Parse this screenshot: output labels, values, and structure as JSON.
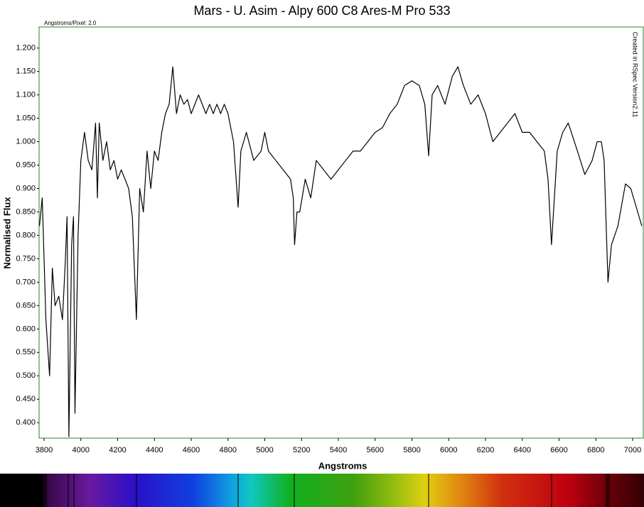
{
  "chart_data": {
    "type": "line",
    "title": "Mars - U. Asim - Alpy 600 C8 Ares-M Pro 533",
    "subtitle": "Angstroms/Pixel: 2.0",
    "annotation": "Created in RSpec Version2.11",
    "x_label": "Angstroms",
    "y_label": "Normalised Flux",
    "color": "#000000",
    "x": [
      3775,
      3790,
      3810,
      3830,
      3845,
      3860,
      3880,
      3900,
      3915,
      3925,
      3935,
      3950,
      3960,
      3968,
      3985,
      4000,
      4020,
      4040,
      4060,
      4080,
      4090,
      4100,
      4120,
      4140,
      4160,
      4180,
      4200,
      4220,
      4240,
      4260,
      4280,
      4302,
      4320,
      4340,
      4360,
      4380,
      4400,
      4420,
      4440,
      4460,
      4480,
      4500,
      4520,
      4540,
      4560,
      4580,
      4600,
      4640,
      4680,
      4700,
      4720,
      4740,
      4760,
      4780,
      4800,
      4830,
      4855,
      4870,
      4900,
      4940,
      4980,
      5000,
      5020,
      5060,
      5100,
      5140,
      5155,
      5162,
      5175,
      5190,
      5220,
      5250,
      5280,
      5320,
      5360,
      5400,
      5440,
      5480,
      5520,
      5560,
      5600,
      5640,
      5680,
      5720,
      5760,
      5800,
      5840,
      5870,
      5891,
      5910,
      5940,
      5980,
      6020,
      6050,
      6080,
      6120,
      6160,
      6200,
      6240,
      6280,
      6320,
      6360,
      6400,
      6440,
      6480,
      6520,
      6540,
      6559,
      6590,
      6620,
      6650,
      6700,
      6740,
      6780,
      6807,
      6830,
      6845,
      6866,
      6885,
      6920,
      6961,
      6990,
      7020,
      7050
    ],
    "values": [
      0.82,
      0.88,
      0.62,
      0.5,
      0.73,
      0.65,
      0.67,
      0.62,
      0.74,
      0.84,
      0.37,
      0.78,
      0.84,
      0.42,
      0.8,
      0.96,
      1.02,
      0.96,
      0.94,
      1.04,
      0.88,
      1.04,
      0.96,
      1.0,
      0.94,
      0.96,
      0.92,
      0.94,
      0.92,
      0.9,
      0.84,
      0.62,
      0.9,
      0.85,
      0.98,
      0.9,
      0.98,
      0.96,
      1.02,
      1.06,
      1.08,
      1.16,
      1.06,
      1.1,
      1.08,
      1.09,
      1.06,
      1.1,
      1.06,
      1.08,
      1.06,
      1.08,
      1.06,
      1.08,
      1.06,
      1.0,
      0.86,
      0.98,
      1.02,
      0.96,
      0.98,
      1.02,
      0.98,
      0.96,
      0.94,
      0.92,
      0.88,
      0.78,
      0.85,
      0.85,
      0.92,
      0.88,
      0.96,
      0.94,
      0.92,
      0.94,
      0.96,
      0.98,
      0.98,
      1.0,
      1.02,
      1.03,
      1.06,
      1.08,
      1.12,
      1.13,
      1.12,
      1.08,
      0.97,
      1.1,
      1.12,
      1.08,
      1.14,
      1.16,
      1.12,
      1.08,
      1.1,
      1.06,
      1.0,
      1.02,
      1.04,
      1.06,
      1.02,
      1.02,
      1.0,
      0.98,
      0.92,
      0.78,
      0.98,
      1.02,
      1.04,
      0.98,
      0.93,
      0.96,
      1.0,
      1.0,
      0.96,
      0.7,
      0.78,
      0.82,
      0.91,
      0.9,
      0.86,
      0.82
    ],
    "xlim": [
      3773,
      7058
    ],
    "ylim": [
      0.367,
      1.245
    ],
    "xticks": [
      3800,
      4000,
      4200,
      4400,
      4600,
      4800,
      5000,
      5200,
      5400,
      5600,
      5800,
      6000,
      6200,
      6400,
      6600,
      6800,
      7000
    ],
    "yticks": [
      {
        "value": 0.4,
        "label": "0.400"
      },
      {
        "value": 0.45,
        "label": "0.450"
      },
      {
        "value": 0.5,
        "label": "0.500"
      },
      {
        "value": 0.55,
        "label": "0.550"
      },
      {
        "value": 0.6,
        "label": "0.600"
      },
      {
        "value": 0.65,
        "label": "0.650"
      },
      {
        "value": 0.7,
        "label": "0.700"
      },
      {
        "value": 0.75,
        "label": "0.750"
      },
      {
        "value": 0.8,
        "label": "0.800"
      },
      {
        "value": 0.85,
        "label": "0.850"
      },
      {
        "value": 0.9,
        "label": "0.900"
      },
      {
        "value": 0.95,
        "label": "0.950"
      },
      {
        "value": 1.0,
        "label": "1.000"
      },
      {
        "value": 1.05,
        "label": "1.050"
      },
      {
        "value": 1.1,
        "label": "1.100"
      },
      {
        "value": 1.15,
        "label": "1.150"
      },
      {
        "value": 1.2,
        "label": "1.200"
      }
    ],
    "grid": false
  }
}
